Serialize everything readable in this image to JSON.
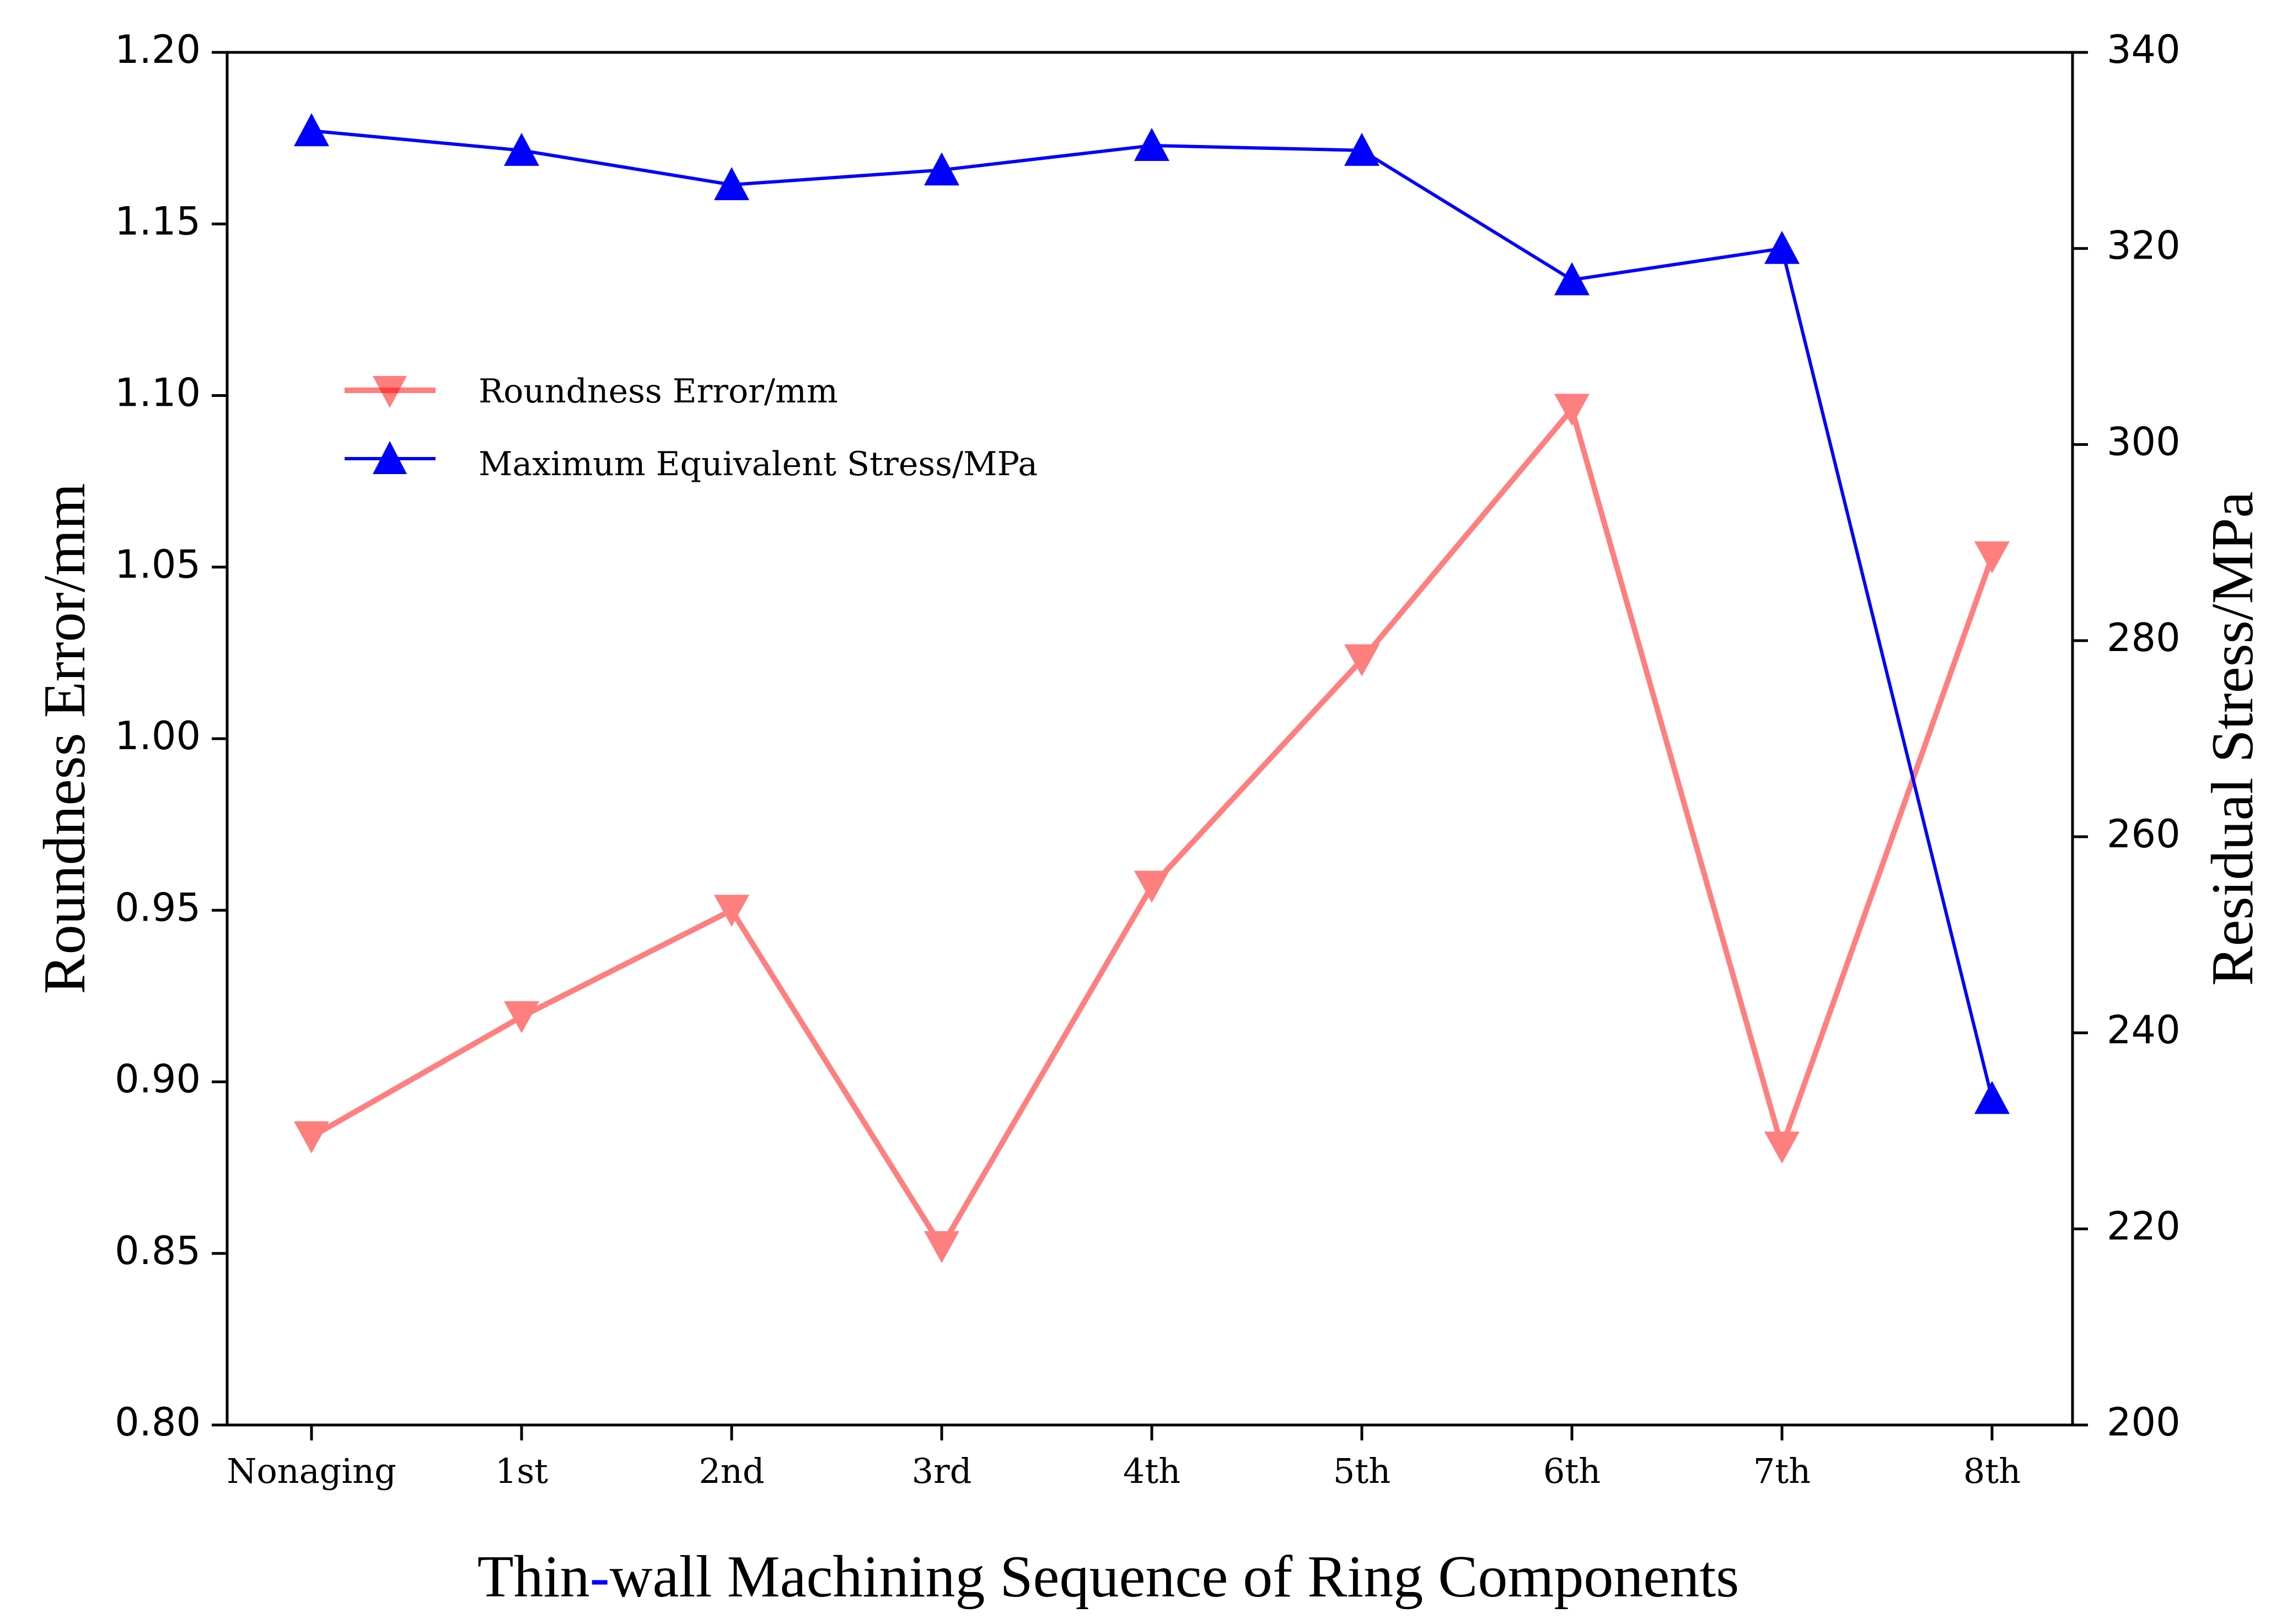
{
  "chart_data": {
    "type": "line",
    "categories": [
      "Nonaging",
      "1st",
      "2nd",
      "3rd",
      "4th",
      "5th",
      "6th",
      "7th",
      "8th"
    ],
    "series": [
      {
        "name": "Roundness Error/mm",
        "axis": "left",
        "marker": "triangle-down",
        "color": "#ff7f7f",
        "values": [
          0.884,
          0.919,
          0.95,
          0.852,
          0.957,
          1.023,
          1.096,
          0.881,
          1.053
        ]
      },
      {
        "name": "Maximum Equivalent Stress/MPa",
        "axis": "right",
        "marker": "triangle-up",
        "color": "#0000ff",
        "values": [
          332.0,
          330.0,
          326.5,
          328.0,
          330.5,
          330.0,
          316.8,
          320.0,
          233.3
        ]
      }
    ],
    "xlabel_parts": [
      "Thin",
      "-",
      "wall Machining Sequence of Ring Components"
    ],
    "xlabel_dash_color": "#0000ff",
    "ylabel": "Roundness Error/mm",
    "y2label": "Residual Stress/MPa",
    "ylim": [
      0.8,
      1.2
    ],
    "yticks": [
      "0.80",
      "0.85",
      "0.90",
      "0.95",
      "1.00",
      "1.05",
      "1.10",
      "1.15",
      "1.20"
    ],
    "y2lim": [
      200,
      340
    ],
    "y2ticks": [
      "200",
      "220",
      "240",
      "260",
      "280",
      "300",
      "320",
      "340"
    ],
    "legend_position": "upper-left",
    "grid": false
  }
}
